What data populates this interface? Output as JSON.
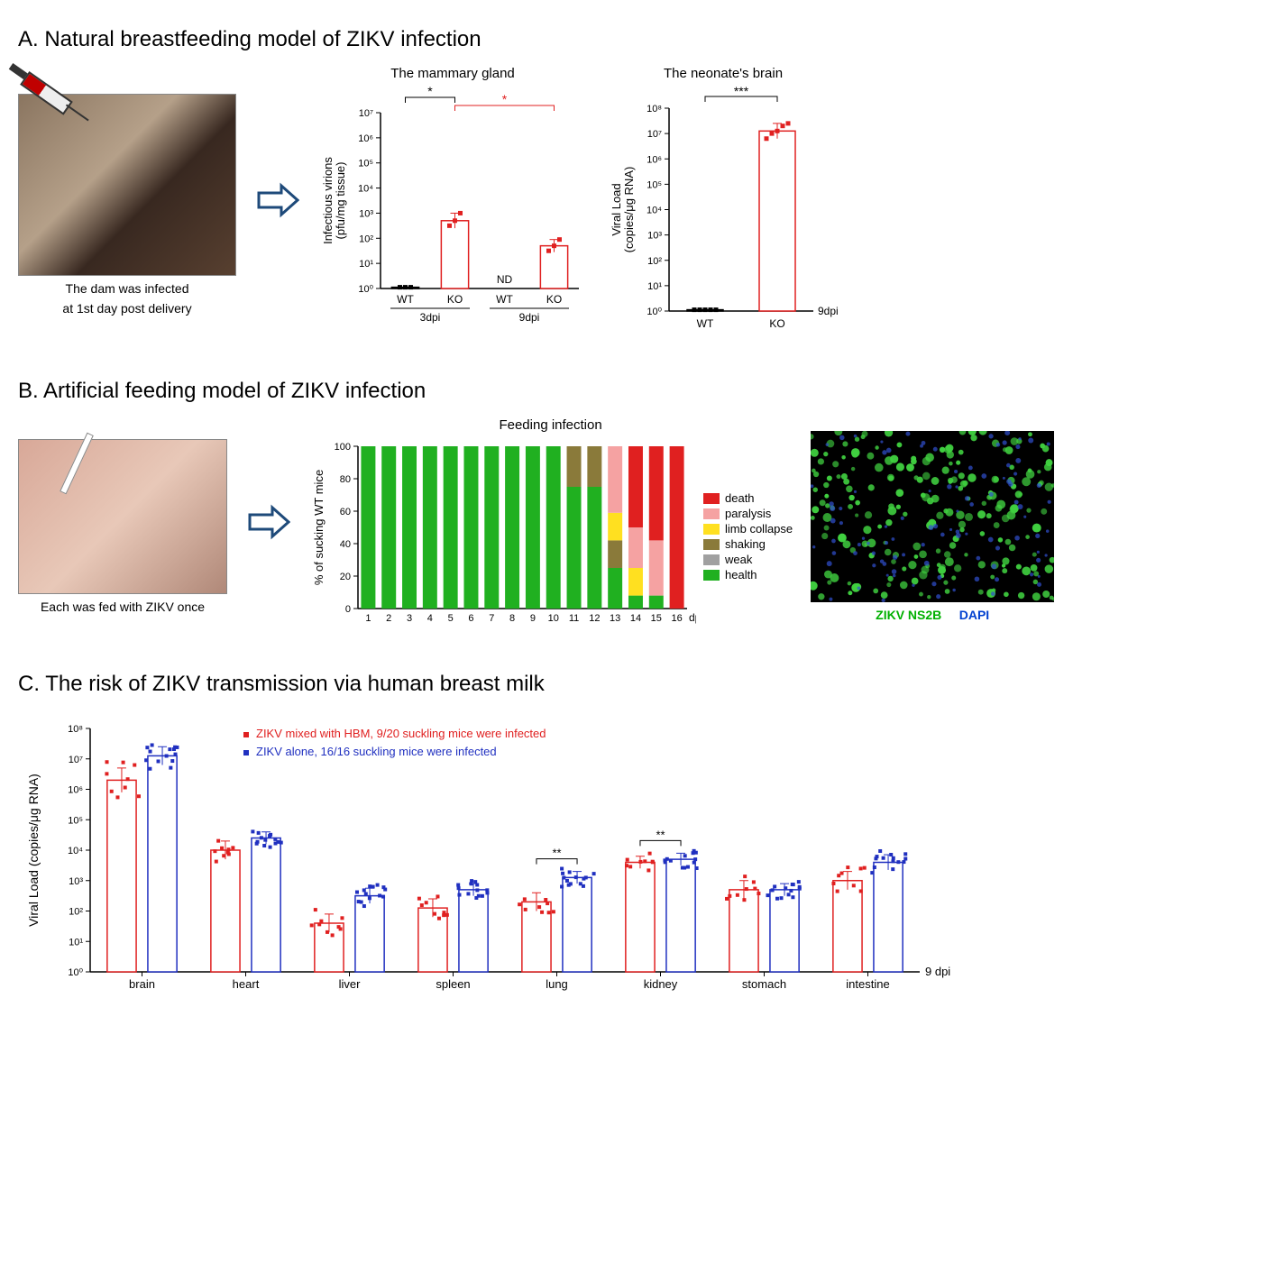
{
  "panelA": {
    "title": "A.  Natural breastfeeding model of ZIKV infection",
    "image_caption_line1": "The dam was infected",
    "image_caption_line2": "at 1st day post delivery",
    "chart1": {
      "type": "bar",
      "title": "The mammary gland",
      "ylabel_line1": "Infectious virions",
      "ylabel_line2": "(pfu/mg tissue)",
      "ylim": [
        0,
        7
      ],
      "yticks": [
        "10⁰",
        "10¹",
        "10²",
        "10³",
        "10⁴",
        "10⁵",
        "10⁶",
        "10⁷"
      ],
      "groups": [
        "3dpi",
        "9dpi"
      ],
      "cats": [
        "WT",
        "KO",
        "WT",
        "KO"
      ],
      "nd_label": "ND",
      "values_log": [
        0.05,
        2.7,
        null,
        1.7
      ],
      "errors": [
        0,
        0.3,
        0,
        0.25
      ],
      "points": [
        [
          0.05,
          0.05,
          0.05
        ],
        [
          2.5,
          2.7,
          3.0
        ],
        [],
        [
          1.5,
          1.7,
          1.95
        ]
      ],
      "bar_color": "#ffffff",
      "bar_stroke": "#e02020",
      "wt_bar_stroke": "#000000",
      "wt_point_color": "#000000",
      "point_color": "#e02020",
      "sig1": "*",
      "sig2": "*",
      "sig1_color": "#000000",
      "sig2_color": "#e02020",
      "axis_color": "#000000"
    },
    "chart2": {
      "type": "bar",
      "title": "The neonate's  brain",
      "ylabel_line1": "Viral Load",
      "ylabel_line2": "(copies/μg RNA)",
      "ylim": [
        0,
        8
      ],
      "yticks": [
        "10⁰",
        "10¹",
        "10²",
        "10³",
        "10⁴",
        "10⁵",
        "10⁶",
        "10⁷",
        "10⁸"
      ],
      "cats": [
        "WT",
        "KO"
      ],
      "values_log": [
        0.05,
        7.1
      ],
      "errors": [
        0,
        0.3
      ],
      "points": [
        [
          0.05,
          0.05,
          0.05,
          0.05,
          0.05
        ],
        [
          6.8,
          7.0,
          7.1,
          7.3,
          7.4
        ]
      ],
      "dpi_label": "9dpi",
      "bar_color": "#ffffff",
      "bar_stroke": "#e02020",
      "wt_bar_stroke": "#000000",
      "wt_point_color": "#000000",
      "point_color": "#e02020",
      "sig": "***",
      "axis_color": "#000000"
    }
  },
  "panelB": {
    "title": "B. Artificial feeding model of ZIKV infection",
    "image_caption": "Each was fed with ZIKV once",
    "chart": {
      "type": "stacked-bar",
      "title": "Feeding infection",
      "ylabel": "% of sucking WT mice",
      "xlabel": "dpi",
      "ylim": [
        0,
        100
      ],
      "ytick_step": 20,
      "xvals": [
        1,
        2,
        3,
        4,
        5,
        6,
        7,
        8,
        9,
        10,
        11,
        12,
        13,
        14,
        15,
        16
      ],
      "legend": [
        {
          "key": "death",
          "label": "death",
          "color": "#e02020"
        },
        {
          "key": "paralysis",
          "label": "paralysis",
          "color": "#f5a2a2"
        },
        {
          "key": "limb",
          "label": "limb collapse",
          "color": "#ffe020"
        },
        {
          "key": "shaking",
          "label": "shaking",
          "color": "#8a7a3a"
        },
        {
          "key": "weak",
          "label": "weak",
          "color": "#a0a0a0"
        },
        {
          "key": "health",
          "label": "health",
          "color": "#20b020"
        }
      ],
      "data": [
        {
          "health": 100
        },
        {
          "health": 100
        },
        {
          "health": 100
        },
        {
          "health": 100
        },
        {
          "health": 100
        },
        {
          "health": 100
        },
        {
          "health": 100
        },
        {
          "health": 100
        },
        {
          "health": 100
        },
        {
          "health": 100
        },
        {
          "health": 75,
          "shaking": 25
        },
        {
          "health": 75,
          "shaking": 25
        },
        {
          "health": 25,
          "shaking": 17,
          "limb": 17,
          "paralysis": 41
        },
        {
          "health": 8,
          "limb": 17,
          "paralysis": 25,
          "death": 50
        },
        {
          "health": 8,
          "paralysis": 34,
          "death": 58
        },
        {
          "death": 100
        }
      ],
      "axis_color": "#000000"
    },
    "fluo": {
      "label_green": "ZIKV NS2B",
      "label_blue": "DAPI",
      "green": "#40d040",
      "blue": "#3050d0",
      "bg": "#000000"
    }
  },
  "panelC": {
    "title": "C.  The risk of ZIKV transmission via human breast milk",
    "chart": {
      "type": "grouped-bar",
      "ylabel": "Viral Load (copies/μg RNA)",
      "ylim": [
        0,
        8
      ],
      "yticks": [
        "10⁰",
        "10¹",
        "10²",
        "10³",
        "10⁴",
        "10⁵",
        "10⁶",
        "10⁷",
        "10⁸"
      ],
      "categories": [
        "brain",
        "heart",
        "liver",
        "spleen",
        "lung",
        "kidney",
        "stomach",
        "intestine"
      ],
      "dpi_label": "9 dpi",
      "series": [
        {
          "key": "hbm",
          "label": "ZIKV mixed with HBM, 9/20 suckling mice were infected",
          "color": "#e02020"
        },
        {
          "key": "alone",
          "label": "ZIKV alone, 16/16 suckling mice were infected",
          "color": "#2030c0"
        }
      ],
      "values_log": {
        "hbm": [
          6.3,
          4.0,
          1.6,
          2.1,
          2.3,
          3.6,
          2.7,
          3.0
        ],
        "alone": [
          7.1,
          4.4,
          2.5,
          2.7,
          3.1,
          3.7,
          2.7,
          3.6
        ]
      },
      "errors": {
        "hbm": [
          0.4,
          0.3,
          0.3,
          0.3,
          0.3,
          0.2,
          0.3,
          0.3
        ],
        "alone": [
          0.3,
          0.2,
          0.25,
          0.2,
          0.2,
          0.2,
          0.2,
          0.25
        ]
      },
      "sig": [
        {
          "cat": "lung",
          "label": "**"
        },
        {
          "cat": "kidney",
          "label": "**"
        }
      ],
      "axis_color": "#000000",
      "bar_fill": "#ffffff"
    }
  }
}
